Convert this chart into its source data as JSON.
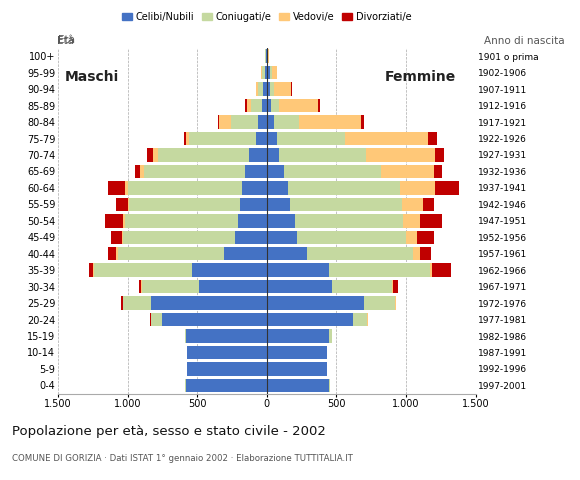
{
  "age_groups": [
    "0-4",
    "5-9",
    "10-14",
    "15-19",
    "20-24",
    "25-29",
    "30-34",
    "35-39",
    "40-44",
    "45-49",
    "50-54",
    "55-59",
    "60-64",
    "65-69",
    "70-74",
    "75-79",
    "80-84",
    "85-89",
    "90-94",
    "95-99",
    "100+"
  ],
  "birth_years": [
    "1997-2001",
    "1992-1996",
    "1987-1991",
    "1982-1986",
    "1977-1981",
    "1972-1976",
    "1967-1971",
    "1962-1966",
    "1957-1961",
    "1952-1956",
    "1947-1951",
    "1942-1946",
    "1937-1941",
    "1932-1936",
    "1927-1931",
    "1922-1926",
    "1917-1921",
    "1912-1916",
    "1907-1911",
    "1902-1906",
    "1901 o prima"
  ],
  "males": {
    "celibi": [
      580,
      570,
      570,
      580,
      750,
      830,
      490,
      540,
      310,
      230,
      210,
      190,
      180,
      160,
      130,
      80,
      60,
      35,
      25,
      15,
      5
    ],
    "coniugati": [
      5,
      5,
      5,
      10,
      80,
      200,
      410,
      700,
      760,
      800,
      810,
      800,
      820,
      720,
      650,
      480,
      200,
      80,
      40,
      20,
      5
    ],
    "vedovi": [
      0,
      0,
      0,
      0,
      5,
      5,
      5,
      5,
      10,
      10,
      10,
      10,
      20,
      30,
      40,
      20,
      80,
      30,
      10,
      5,
      2
    ],
    "divorziati": [
      0,
      0,
      0,
      0,
      5,
      10,
      15,
      30,
      60,
      80,
      130,
      80,
      120,
      40,
      40,
      15,
      10,
      10,
      5,
      0,
      0
    ]
  },
  "females": {
    "nubili": [
      450,
      430,
      430,
      450,
      620,
      700,
      470,
      450,
      290,
      220,
      200,
      170,
      150,
      120,
      90,
      70,
      50,
      30,
      25,
      20,
      5
    ],
    "coniugate": [
      5,
      5,
      5,
      15,
      100,
      220,
      430,
      720,
      760,
      780,
      780,
      800,
      810,
      700,
      620,
      490,
      180,
      60,
      30,
      15,
      5
    ],
    "vedove": [
      0,
      0,
      0,
      0,
      5,
      5,
      10,
      20,
      50,
      80,
      120,
      150,
      250,
      380,
      500,
      600,
      450,
      280,
      120,
      40,
      5
    ],
    "divorziate": [
      0,
      0,
      0,
      0,
      5,
      5,
      30,
      130,
      80,
      120,
      160,
      80,
      170,
      60,
      60,
      60,
      15,
      15,
      5,
      0,
      0
    ]
  },
  "colors": {
    "celibi_nubili": "#4472c4",
    "coniugati": "#c5d9a0",
    "vedovi": "#ffc878",
    "divorziati": "#c00000"
  },
  "xlim": 1500,
  "title": "Popolazione per età, sesso e stato civile - 2002",
  "subtitle": "COMUNE DI GORIZIA · Dati ISTAT 1° gennaio 2002 · Elaborazione TUTTITALIA.IT",
  "ylabel_left": "Età",
  "ylabel_right": "Anno di nascita",
  "xlabel_maschi": "Maschi",
  "xlabel_femmine": "Femmine",
  "legend_labels": [
    "Celibi/Nubili",
    "Coniugati/e",
    "Vedovi/e",
    "Divorziati/e"
  ]
}
